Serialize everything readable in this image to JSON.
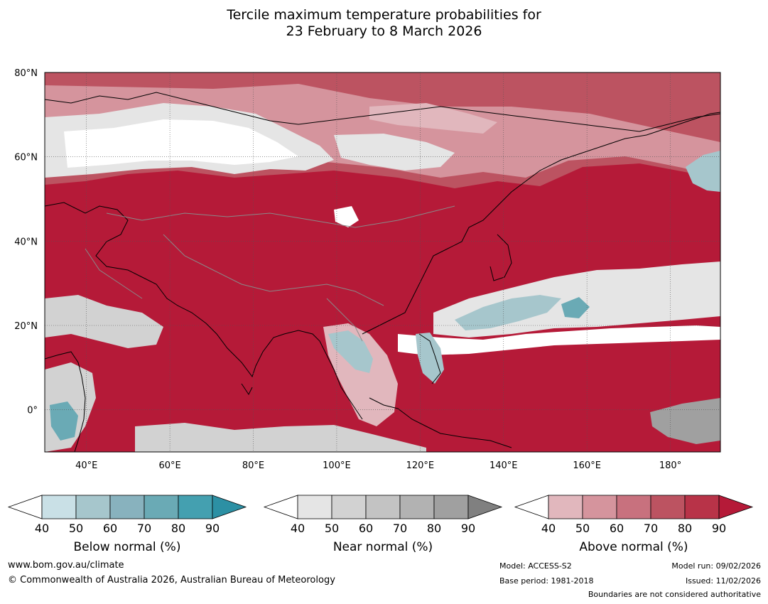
{
  "title_line1": "Tercile maximum temperature probabilities for",
  "title_line2": "23 February to 8 March 2026",
  "map": {
    "lat_range": [
      -10,
      80
    ],
    "lon_range": [
      30,
      192
    ],
    "lat_ticks": [
      {
        "value": 80,
        "label": "80°N"
      },
      {
        "value": 60,
        "label": "60°N"
      },
      {
        "value": 40,
        "label": "40°N"
      },
      {
        "value": 20,
        "label": "20°N"
      },
      {
        "value": 0,
        "label": "0°"
      }
    ],
    "lon_ticks": [
      {
        "value": 40,
        "label": "40°E"
      },
      {
        "value": 60,
        "label": "60°E"
      },
      {
        "value": 80,
        "label": "80°E"
      },
      {
        "value": 100,
        "label": "100°E"
      },
      {
        "value": 120,
        "label": "120°E"
      },
      {
        "value": 140,
        "label": "140°E"
      },
      {
        "value": 160,
        "label": "160°E"
      },
      {
        "value": 180,
        "label": "180°"
      }
    ],
    "palette": {
      "above": [
        "#ffffff",
        "#e1b7bd",
        "#d5949d",
        "#c8717e",
        "#bc5361",
        "#b83348",
        "#b51a38"
      ],
      "near": [
        "#ffffff",
        "#e5e5e5",
        "#d2d2d2",
        "#c3c3c3",
        "#b2b2b2",
        "#a0a0a0",
        "#808080"
      ],
      "below": [
        "#ffffff",
        "#c9e0e6",
        "#a6c6cc",
        "#88b2be",
        "#6aaab5",
        "#44a0b0",
        "#2c90a4"
      ],
      "coast": "#000000",
      "border": "#8a8a8a",
      "grid": "#555555"
    }
  },
  "colorbars": [
    {
      "title": "Below normal (%)",
      "ticks": [
        "40",
        "50",
        "60",
        "70",
        "80",
        "90"
      ],
      "colors": [
        "#ffffff",
        "#c9e0e6",
        "#a6c6cc",
        "#88b2be",
        "#6aaab5",
        "#44a0b0",
        "#2c90a4"
      ]
    },
    {
      "title": "Near normal (%)",
      "ticks": [
        "40",
        "50",
        "60",
        "70",
        "80",
        "90"
      ],
      "colors": [
        "#ffffff",
        "#e5e5e5",
        "#d2d2d2",
        "#c3c3c3",
        "#b2b2b2",
        "#a0a0a0",
        "#808080"
      ]
    },
    {
      "title": "Above normal (%)",
      "ticks": [
        "40",
        "50",
        "60",
        "70",
        "80",
        "90"
      ],
      "colors": [
        "#ffffff",
        "#e1b7bd",
        "#d5949d",
        "#c8717e",
        "#bc5361",
        "#b83348",
        "#b51a38"
      ]
    }
  ],
  "footer": {
    "website": "www.bom.gov.au/climate",
    "copyright": "© Commonwealth of Australia 2026, Australian Bureau of Meteorology",
    "model": "Model: ACCESS-S2",
    "base_period": "Base period: 1981-2018",
    "model_run": "Model run: 09/02/2026",
    "issued": "Issued: 11/02/2026",
    "disclaimer": "Boundaries are not considered authoritative"
  }
}
